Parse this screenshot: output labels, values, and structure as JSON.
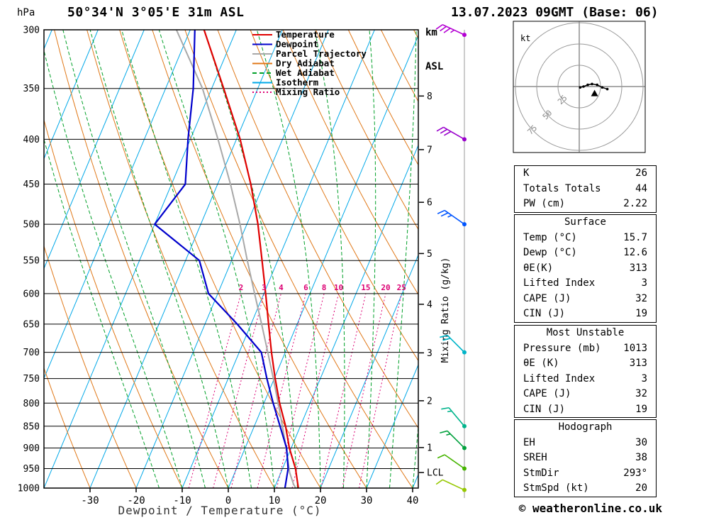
{
  "header": {
    "title": "50°34'N 3°05'E 31m ASL",
    "pressure_unit": "hPa",
    "km_label": "km",
    "asl_label": "ASL",
    "datetime": "13.07.2023 09GMT (Base: 06)"
  },
  "footer": {
    "copyright": "© weatheronline.co.uk"
  },
  "tables": {
    "indices": {
      "rows": [
        {
          "label": "K",
          "value": "26"
        },
        {
          "label": "Totals Totals",
          "value": "44"
        },
        {
          "label": "PW (cm)",
          "value": "2.22"
        }
      ]
    },
    "surface": {
      "title": "Surface",
      "rows": [
        {
          "label": "Temp (°C)",
          "value": "15.7"
        },
        {
          "label": "Dewp (°C)",
          "value": "12.6"
        },
        {
          "label": "θE(K)",
          "value": "313"
        },
        {
          "label": "Lifted Index",
          "value": "3"
        },
        {
          "label": "CAPE (J)",
          "value": "32"
        },
        {
          "label": "CIN (J)",
          "value": "19"
        }
      ]
    },
    "most_unstable": {
      "title": "Most Unstable",
      "rows": [
        {
          "label": "Pressure (mb)",
          "value": "1013"
        },
        {
          "label": "θE (K)",
          "value": "313"
        },
        {
          "label": "Lifted Index",
          "value": "3"
        },
        {
          "label": "CAPE (J)",
          "value": "32"
        },
        {
          "label": "CIN (J)",
          "value": "19"
        }
      ]
    },
    "hodograph": {
      "title": "Hodograph",
      "rows": [
        {
          "label": "EH",
          "value": "30"
        },
        {
          "label": "SREH",
          "value": "38"
        },
        {
          "label": "StmDir",
          "value": "293°"
        },
        {
          "label": "StmSpd (kt)",
          "value": "20"
        }
      ]
    }
  },
  "chart_data": {
    "type": "skewt-log-p-sounding",
    "title": "50°34'N 3°05'E 31m ASL",
    "xlabel": "Dewpoint / Temperature (°C)",
    "x_ticks": [
      -30,
      -20,
      -10,
      0,
      10,
      20,
      30,
      40
    ],
    "pressure_ticks": [
      300,
      350,
      400,
      450,
      500,
      550,
      600,
      650,
      700,
      750,
      800,
      850,
      900,
      950,
      1000
    ],
    "pressure_range": [
      300,
      1000
    ],
    "km_ticks": [
      {
        "label": "8",
        "p": 357
      },
      {
        "label": "7",
        "p": 411
      },
      {
        "label": "6",
        "p": 472
      },
      {
        "label": "5",
        "p": 540
      },
      {
        "label": "4",
        "p": 617
      },
      {
        "label": "3",
        "p": 701
      },
      {
        "label": "2",
        "p": 795
      },
      {
        "label": "1",
        "p": 899
      },
      {
        "label": "LCL",
        "p": 960
      }
    ],
    "mixing_ratio_axis_label": "Mixing Ratio (g/kg)",
    "mixing_ratio_lines": [
      2,
      3,
      4,
      6,
      8,
      10,
      15,
      20,
      25
    ],
    "isotherm_step_c": 10,
    "dry_adiabats_theta_c": {
      "from": -40,
      "to": 120,
      "step": 10
    },
    "wet_adiabat_start_c": [
      -15,
      -10,
      -5,
      0,
      5,
      10,
      15,
      20,
      25,
      30,
      35,
      40
    ],
    "legend": [
      {
        "label": "Temperature",
        "color": "#e00000",
        "style": "solid"
      },
      {
        "label": "Dewpoint",
        "color": "#0000cc",
        "style": "solid"
      },
      {
        "label": "Parcel Trajectory",
        "color": "#a8a8a8",
        "style": "solid"
      },
      {
        "label": "Dry Adiabat",
        "color": "#e07818",
        "style": "solid"
      },
      {
        "label": "Wet Adiabat",
        "color": "#00a028",
        "style": "dashed"
      },
      {
        "label": "Isotherm",
        "color": "#00a8e8",
        "style": "solid"
      },
      {
        "label": "Mixing Ratio",
        "color": "#dc0073",
        "style": "dotted"
      }
    ],
    "series": {
      "temperature_p_c": [
        [
          1013,
          15.7
        ],
        [
          1000,
          15.2
        ],
        [
          950,
          12.8
        ],
        [
          900,
          9.6
        ],
        [
          850,
          6.8
        ],
        [
          800,
          3.4
        ],
        [
          750,
          0.2
        ],
        [
          700,
          -3.0
        ],
        [
          650,
          -6.2
        ],
        [
          600,
          -9.6
        ],
        [
          550,
          -13.4
        ],
        [
          500,
          -17.6
        ],
        [
          450,
          -22.8
        ],
        [
          400,
          -29.2
        ],
        [
          350,
          -37.4
        ],
        [
          300,
          -47.0
        ]
      ],
      "dewpoint_p_c": [
        [
          1013,
          12.6
        ],
        [
          1000,
          12.3
        ],
        [
          950,
          11.2
        ],
        [
          900,
          9.0
        ],
        [
          850,
          5.6
        ],
        [
          800,
          2.0
        ],
        [
          750,
          -1.6
        ],
        [
          700,
          -5.2
        ],
        [
          650,
          -13.0
        ],
        [
          600,
          -22.0
        ],
        [
          550,
          -27.0
        ],
        [
          500,
          -40.0
        ],
        [
          450,
          -37.0
        ],
        [
          400,
          -40.5
        ],
        [
          350,
          -44.0
        ],
        [
          300,
          -49.0
        ]
      ],
      "parcel_p_c": [
        [
          1013,
          15.7
        ],
        [
          990,
          13.8
        ],
        [
          960,
          11.9
        ],
        [
          900,
          8.9
        ],
        [
          850,
          6.1
        ],
        [
          800,
          3.1
        ],
        [
          750,
          -0.2
        ],
        [
          700,
          -3.8
        ],
        [
          650,
          -7.7
        ],
        [
          600,
          -12.0
        ],
        [
          550,
          -16.6
        ],
        [
          500,
          -21.5
        ],
        [
          450,
          -27.2
        ],
        [
          400,
          -34.0
        ],
        [
          350,
          -42.0
        ],
        [
          300,
          -53.0
        ]
      ]
    },
    "wind_barbs": [
      {
        "p": 304,
        "speed_kt": 35,
        "dir_deg": 295,
        "color": "#b400d3"
      },
      {
        "p": 400,
        "speed_kt": 30,
        "dir_deg": 300,
        "color": "#9900cc"
      },
      {
        "p": 500,
        "speed_kt": 25,
        "dir_deg": 305,
        "color": "#0055ff"
      },
      {
        "p": 700,
        "speed_kt": 20,
        "dir_deg": 315,
        "color": "#00b4c8"
      },
      {
        "p": 850,
        "speed_kt": 15,
        "dir_deg": 320,
        "color": "#00b48c"
      },
      {
        "p": 900,
        "speed_kt": 15,
        "dir_deg": 315,
        "color": "#00a03c"
      },
      {
        "p": 950,
        "speed_kt": 12,
        "dir_deg": 305,
        "color": "#46b400"
      },
      {
        "p": 1005,
        "speed_kt": 10,
        "dir_deg": 295,
        "color": "#96c800"
      }
    ],
    "hodograph": {
      "unit_label": "kt",
      "rings_kt": [
        25,
        50,
        75
      ],
      "trace_uv_kt": [
        [
          1,
          -1
        ],
        [
          5,
          0
        ],
        [
          10,
          2
        ],
        [
          15,
          3
        ],
        [
          21,
          2
        ],
        [
          27,
          -1
        ],
        [
          33,
          -3
        ]
      ],
      "storm_motion_uv_kt": [
        18,
        -8
      ],
      "storm_dir_deg": 293,
      "storm_speed_kt": 20
    },
    "colors": {
      "temperature": "#e00000",
      "dewpoint": "#0000cc",
      "parcel": "#a8a8a8",
      "dry_adiabat": "#e07818",
      "wet_adiabat": "#00a028",
      "isotherm": "#00a8e8",
      "mixing_ratio": "#dc0073",
      "isobar": "#000000",
      "frame": "#000000",
      "wind_staff": "#999999"
    }
  }
}
